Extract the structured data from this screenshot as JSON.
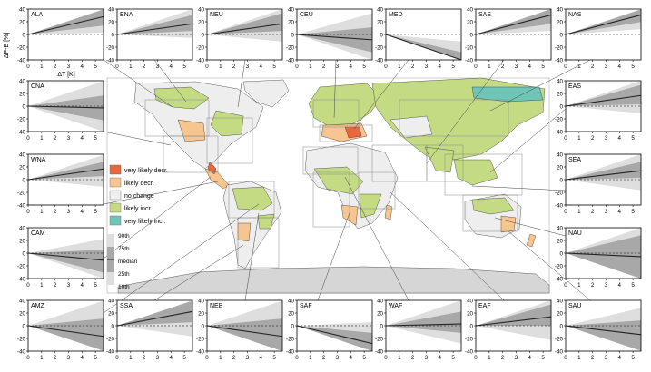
{
  "figure": {
    "ylabel": "ΔP-E [%]",
    "xlabel": "ΔT [K]",
    "legend": {
      "items": [
        {
          "label": "very likely decr.",
          "color": "#e8673c"
        },
        {
          "label": "likely decr.",
          "color": "#f7c58f"
        },
        {
          "label": "no change",
          "color": "#eeeeee"
        },
        {
          "label": "likely incr.",
          "color": "#c5db83"
        },
        {
          "label": "very likely incr.",
          "color": "#6fc6b6"
        }
      ],
      "quantiles": [
        "90th",
        "75th",
        "median",
        "25th",
        "10th"
      ]
    }
  },
  "colors": {
    "band_outer": "#dedede",
    "band_inner": "#a8a8a8",
    "median": "#222222",
    "ocean": "#ffffff",
    "land_default": "#eeeeee",
    "antarctica": "#d6d6d6",
    "connector": "#444444"
  },
  "chart_data": {
    "type": "area",
    "x_ticks": [
      0,
      1,
      2,
      3,
      4,
      5
    ],
    "y_ticks": [
      -40,
      -20,
      0,
      20,
      40
    ],
    "xlim": [
      0,
      5.6
    ],
    "ylim": [
      -40,
      40
    ],
    "bands": [
      "10th",
      "25th",
      "median",
      "75th",
      "90th"
    ],
    "note": "per-region slopes in % per K at quantiles 10th, 25th, median, 75th, 90th",
    "regions": [
      {
        "name": "ALA",
        "slopes": [
          0.5,
          2.5,
          5.0,
          7.0,
          9.0
        ]
      },
      {
        "name": "ENA",
        "slopes": [
          -1.0,
          1.0,
          3.0,
          5.5,
          8.0
        ]
      },
      {
        "name": "NEU",
        "slopes": [
          -2.0,
          1.0,
          3.0,
          6.0,
          9.0
        ]
      },
      {
        "name": "CEU",
        "slopes": [
          -9.0,
          -5.0,
          -1.5,
          2.0,
          6.0
        ]
      },
      {
        "name": "MED",
        "slopes": [
          -14.0,
          -11.0,
          -8.0,
          -5.0,
          -2.0
        ]
      },
      {
        "name": "SAS",
        "slopes": [
          1.0,
          3.0,
          5.5,
          8.0,
          11.0
        ]
      },
      {
        "name": "NAS",
        "slopes": [
          1.5,
          3.5,
          5.5,
          7.0,
          9.0
        ]
      },
      {
        "name": "CNA",
        "slopes": [
          -8.0,
          -4.0,
          -0.5,
          3.0,
          7.0
        ]
      },
      {
        "name": "EAS",
        "slopes": [
          -2.0,
          0.5,
          3.0,
          6.0,
          10.0
        ]
      },
      {
        "name": "WNA",
        "slopes": [
          -2.0,
          1.0,
          3.0,
          5.0,
          7.0
        ]
      },
      {
        "name": "SEA",
        "slopes": [
          -3.0,
          0.5,
          2.5,
          5.0,
          8.0
        ]
      },
      {
        "name": "CAM",
        "slopes": [
          -9.0,
          -5.5,
          -2.0,
          1.0,
          4.0
        ]
      },
      {
        "name": "NAU",
        "slopes": [
          -14.0,
          -8.0,
          -1.0,
          5.0,
          12.0
        ]
      },
      {
        "name": "AMZ",
        "slopes": [
          -12.0,
          -7.0,
          -3.0,
          2.0,
          7.0
        ]
      },
      {
        "name": "SSA",
        "slopes": [
          -3.0,
          1.0,
          4.0,
          7.0,
          10.0
        ]
      },
      {
        "name": "NEB",
        "slopes": [
          -14.0,
          -8.0,
          -3.0,
          2.0,
          7.0
        ]
      },
      {
        "name": "SAF",
        "slopes": [
          -13.0,
          -9.0,
          -5.0,
          -2.0,
          1.0
        ]
      },
      {
        "name": "WAF",
        "slopes": [
          -5.0,
          -2.0,
          0.5,
          4.0,
          8.0
        ]
      },
      {
        "name": "EAF",
        "slopes": [
          -4.0,
          0.0,
          2.5,
          6.0,
          10.0
        ]
      },
      {
        "name": "SAU",
        "slopes": [
          -12.0,
          -7.0,
          -2.5,
          1.5,
          5.0
        ]
      }
    ]
  }
}
